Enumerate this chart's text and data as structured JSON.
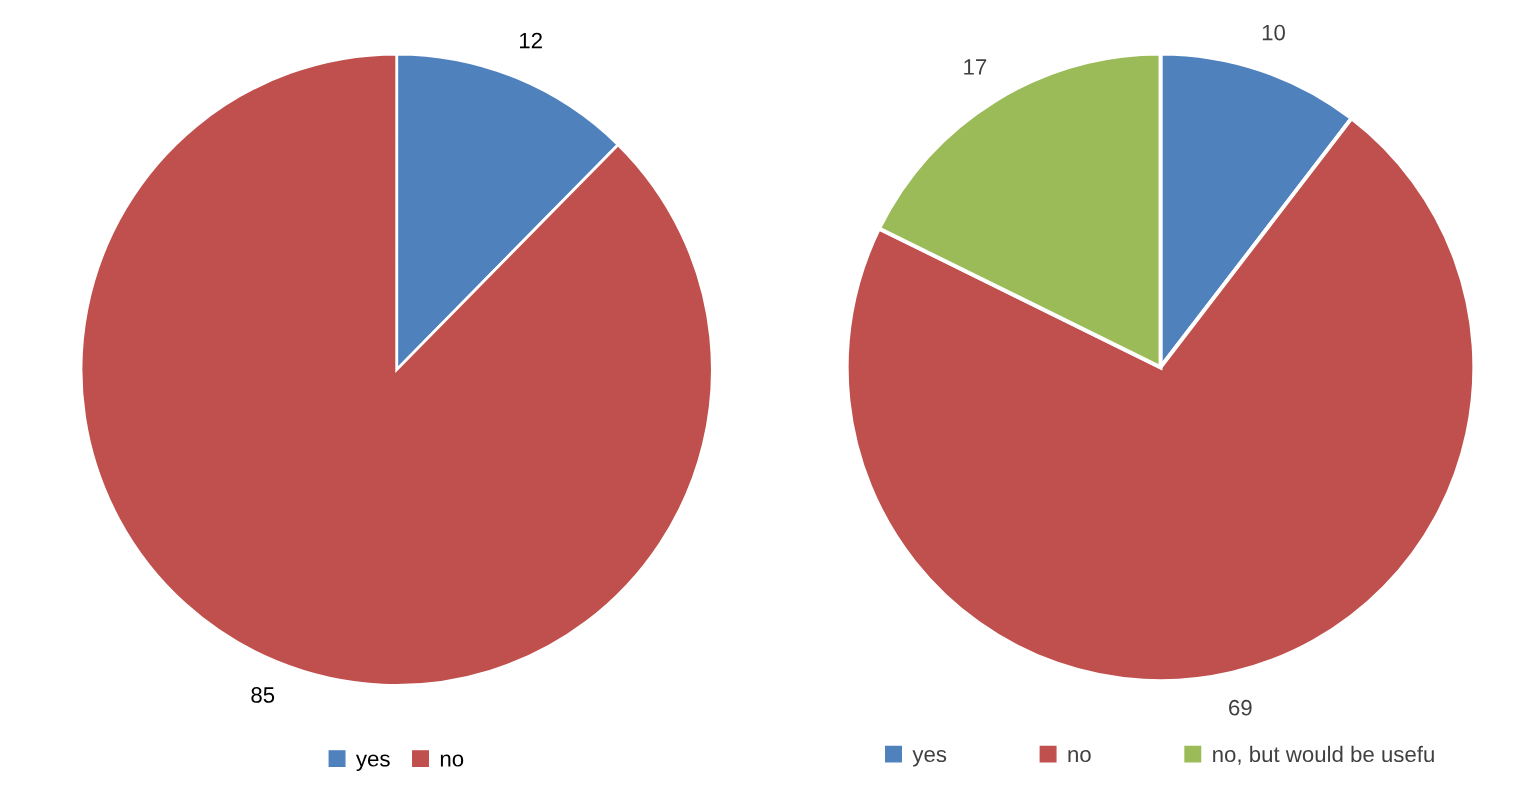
{
  "chart_data": [
    {
      "type": "pie",
      "categories": [
        "yes",
        "no"
      ],
      "values": [
        12,
        85
      ],
      "colors": [
        "#4f81bd",
        "#c0504d"
      ],
      "data_labels": true,
      "legend": "bottom"
    },
    {
      "type": "pie",
      "categories": [
        "yes",
        "no",
        "no, but would be usefu"
      ],
      "values": [
        10,
        69,
        17
      ],
      "colors": [
        "#4f81bd",
        "#c0504d",
        "#9bbb59"
      ],
      "data_labels": true,
      "legend": "bottom"
    }
  ]
}
